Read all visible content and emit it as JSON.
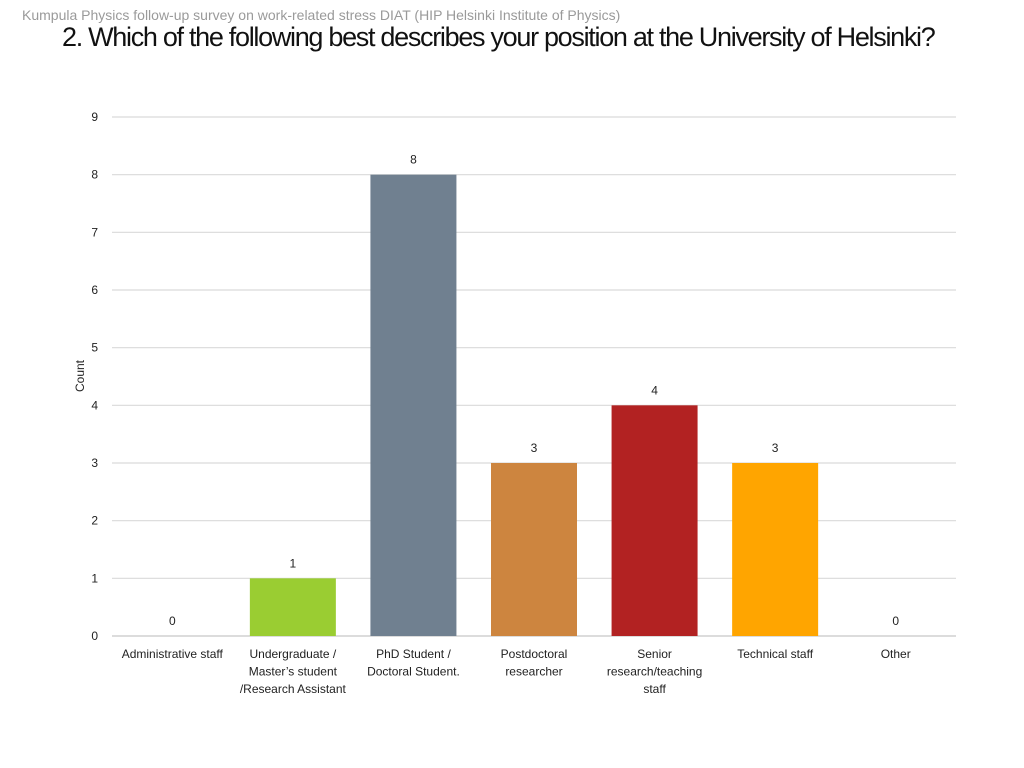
{
  "header": {
    "subtitle": "Kumpula Physics follow-up survey on work-related stress DIAT (HIP  Helsinki Institute of Physics)",
    "title": "2. Which of the following best describes your position at the University of Helsinki?"
  },
  "chart_data": {
    "type": "bar",
    "ylabel": "Count",
    "ylim": [
      0,
      9
    ],
    "yticks": [
      0,
      1,
      2,
      3,
      4,
      5,
      6,
      7,
      8,
      9
    ],
    "grid": true,
    "categories": [
      [
        "Administrative staff"
      ],
      [
        "Undergraduate /",
        "Master’s student",
        "/Research Assistant"
      ],
      [
        "PhD Student /",
        "Doctoral Student."
      ],
      [
        "Postdoctoral",
        "researcher"
      ],
      [
        "Senior",
        "research/teaching",
        "staff"
      ],
      [
        "Technical staff"
      ],
      [
        "Other"
      ]
    ],
    "values": [
      0,
      1,
      8,
      3,
      4,
      3,
      0
    ],
    "colors": [
      "#9acd32",
      "#9acd32",
      "#708090",
      "#cd853f",
      "#b22222",
      "#ffa500",
      "#9acd32"
    ]
  }
}
